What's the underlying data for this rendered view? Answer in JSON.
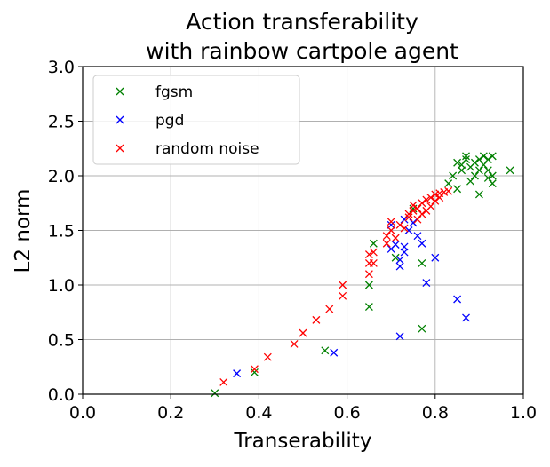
{
  "chart_data": {
    "type": "scatter",
    "title": [
      "Action transferability",
      "with rainbow cartpole agent"
    ],
    "xlabel": "Transerability",
    "ylabel": "L2 norm",
    "xlim": [
      0.0,
      1.0
    ],
    "ylim": [
      0.0,
      3.0
    ],
    "xticks": [
      "0.0",
      "0.2",
      "0.4",
      "0.6",
      "0.8",
      "1.0"
    ],
    "yticks": [
      "0.0",
      "0.5",
      "1.0",
      "1.5",
      "2.0",
      "2.5",
      "3.0"
    ],
    "grid": true,
    "legend_position": "top-left",
    "marker": "x",
    "series": [
      {
        "name": "fgsm",
        "color": "#008000",
        "points": [
          [
            0.3,
            0.01
          ],
          [
            0.39,
            0.2
          ],
          [
            0.55,
            0.4
          ],
          [
            0.65,
            0.8
          ],
          [
            0.65,
            1.0
          ],
          [
            0.66,
            1.38
          ],
          [
            0.71,
            1.25
          ],
          [
            0.75,
            1.7
          ],
          [
            0.77,
            1.2
          ],
          [
            0.77,
            0.6
          ],
          [
            0.83,
            1.93
          ],
          [
            0.84,
            2.0
          ],
          [
            0.85,
            1.88
          ],
          [
            0.86,
            2.1
          ],
          [
            0.86,
            2.05
          ],
          [
            0.87,
            2.15
          ],
          [
            0.88,
            1.95
          ],
          [
            0.88,
            2.08
          ],
          [
            0.89,
            2.12
          ],
          [
            0.89,
            2.0
          ],
          [
            0.9,
            2.05
          ],
          [
            0.9,
            1.83
          ],
          [
            0.91,
            2.18
          ],
          [
            0.91,
            2.1
          ],
          [
            0.92,
            1.98
          ],
          [
            0.92,
            2.15
          ],
          [
            0.93,
            2.0
          ],
          [
            0.93,
            1.93
          ],
          [
            0.93,
            2.18
          ],
          [
            0.97,
            2.05
          ],
          [
            0.9,
            2.15
          ],
          [
            0.87,
            2.18
          ],
          [
            0.92,
            2.05
          ],
          [
            0.85,
            2.12
          ]
        ]
      },
      {
        "name": "pgd",
        "color": "#0000ff",
        "points": [
          [
            0.35,
            0.19
          ],
          [
            0.57,
            0.38
          ],
          [
            0.7,
            1.33
          ],
          [
            0.71,
            1.37
          ],
          [
            0.72,
            1.17
          ],
          [
            0.72,
            1.23
          ],
          [
            0.72,
            0.53
          ],
          [
            0.73,
            1.3
          ],
          [
            0.73,
            1.35
          ],
          [
            0.74,
            1.5
          ],
          [
            0.75,
            1.57
          ],
          [
            0.76,
            1.45
          ],
          [
            0.77,
            1.38
          ],
          [
            0.78,
            1.02
          ],
          [
            0.8,
            1.25
          ],
          [
            0.85,
            0.87
          ],
          [
            0.87,
            0.7
          ],
          [
            0.7,
            1.55
          ],
          [
            0.73,
            1.6
          ]
        ]
      },
      {
        "name": "random noise",
        "color": "#ff0000",
        "points": [
          [
            0.32,
            0.11
          ],
          [
            0.39,
            0.23
          ],
          [
            0.42,
            0.34
          ],
          [
            0.48,
            0.46
          ],
          [
            0.5,
            0.56
          ],
          [
            0.53,
            0.68
          ],
          [
            0.56,
            0.78
          ],
          [
            0.59,
            0.9
          ],
          [
            0.59,
            1.0
          ],
          [
            0.65,
            1.1
          ],
          [
            0.65,
            1.2
          ],
          [
            0.65,
            1.28
          ],
          [
            0.66,
            1.3
          ],
          [
            0.66,
            1.2
          ],
          [
            0.69,
            1.38
          ],
          [
            0.69,
            1.45
          ],
          [
            0.7,
            1.5
          ],
          [
            0.7,
            1.58
          ],
          [
            0.71,
            1.43
          ],
          [
            0.72,
            1.55
          ],
          [
            0.73,
            1.52
          ],
          [
            0.74,
            1.62
          ],
          [
            0.75,
            1.68
          ],
          [
            0.75,
            1.73
          ],
          [
            0.76,
            1.7
          ],
          [
            0.77,
            1.65
          ],
          [
            0.77,
            1.75
          ],
          [
            0.78,
            1.68
          ],
          [
            0.78,
            1.78
          ],
          [
            0.79,
            1.72
          ],
          [
            0.79,
            1.8
          ],
          [
            0.8,
            1.77
          ],
          [
            0.8,
            1.83
          ],
          [
            0.81,
            1.8
          ],
          [
            0.81,
            1.84
          ],
          [
            0.82,
            1.85
          ],
          [
            0.83,
            1.86
          ],
          [
            0.76,
            1.6
          ],
          [
            0.74,
            1.65
          ]
        ]
      }
    ]
  }
}
